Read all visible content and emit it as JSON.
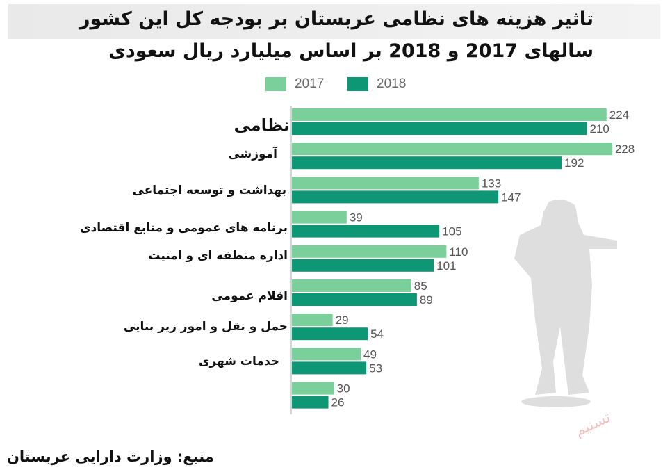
{
  "chart_data": {
    "type": "bar",
    "orientation": "horizontal",
    "title": "تاثیر هزینه های نظامی عربستان بر بودجه کل این کشور",
    "subtitle": "سالهای 2017 و 2018 بر اساس میلیارد ریال سعودی",
    "categories": [
      "نظامی",
      "آموزشی",
      "بهداشت و توسعه اجتماعی",
      "برنامه های عمومی و منابع اقتصادی",
      "اداره منطقه ای و امنیت",
      "اقلام عمومی",
      "حمل و نقل و امور زیر بنایی",
      "خدمات شهری",
      ""
    ],
    "series": [
      {
        "name": "2017",
        "values": [
          224,
          228,
          133,
          39,
          110,
          85,
          29,
          49,
          30
        ]
      },
      {
        "name": "2018",
        "values": [
          210,
          192,
          147,
          105,
          101,
          89,
          54,
          53,
          26
        ]
      }
    ],
    "xlim": [
      0,
      235
    ],
    "grid": false,
    "legend_position": "top-center",
    "colors": {
      "2017": "#7bcf9a",
      "2018": "#0e9774"
    },
    "source": "منبع: وزارت دارایی عربستان",
    "watermark": "تسنیم"
  }
}
